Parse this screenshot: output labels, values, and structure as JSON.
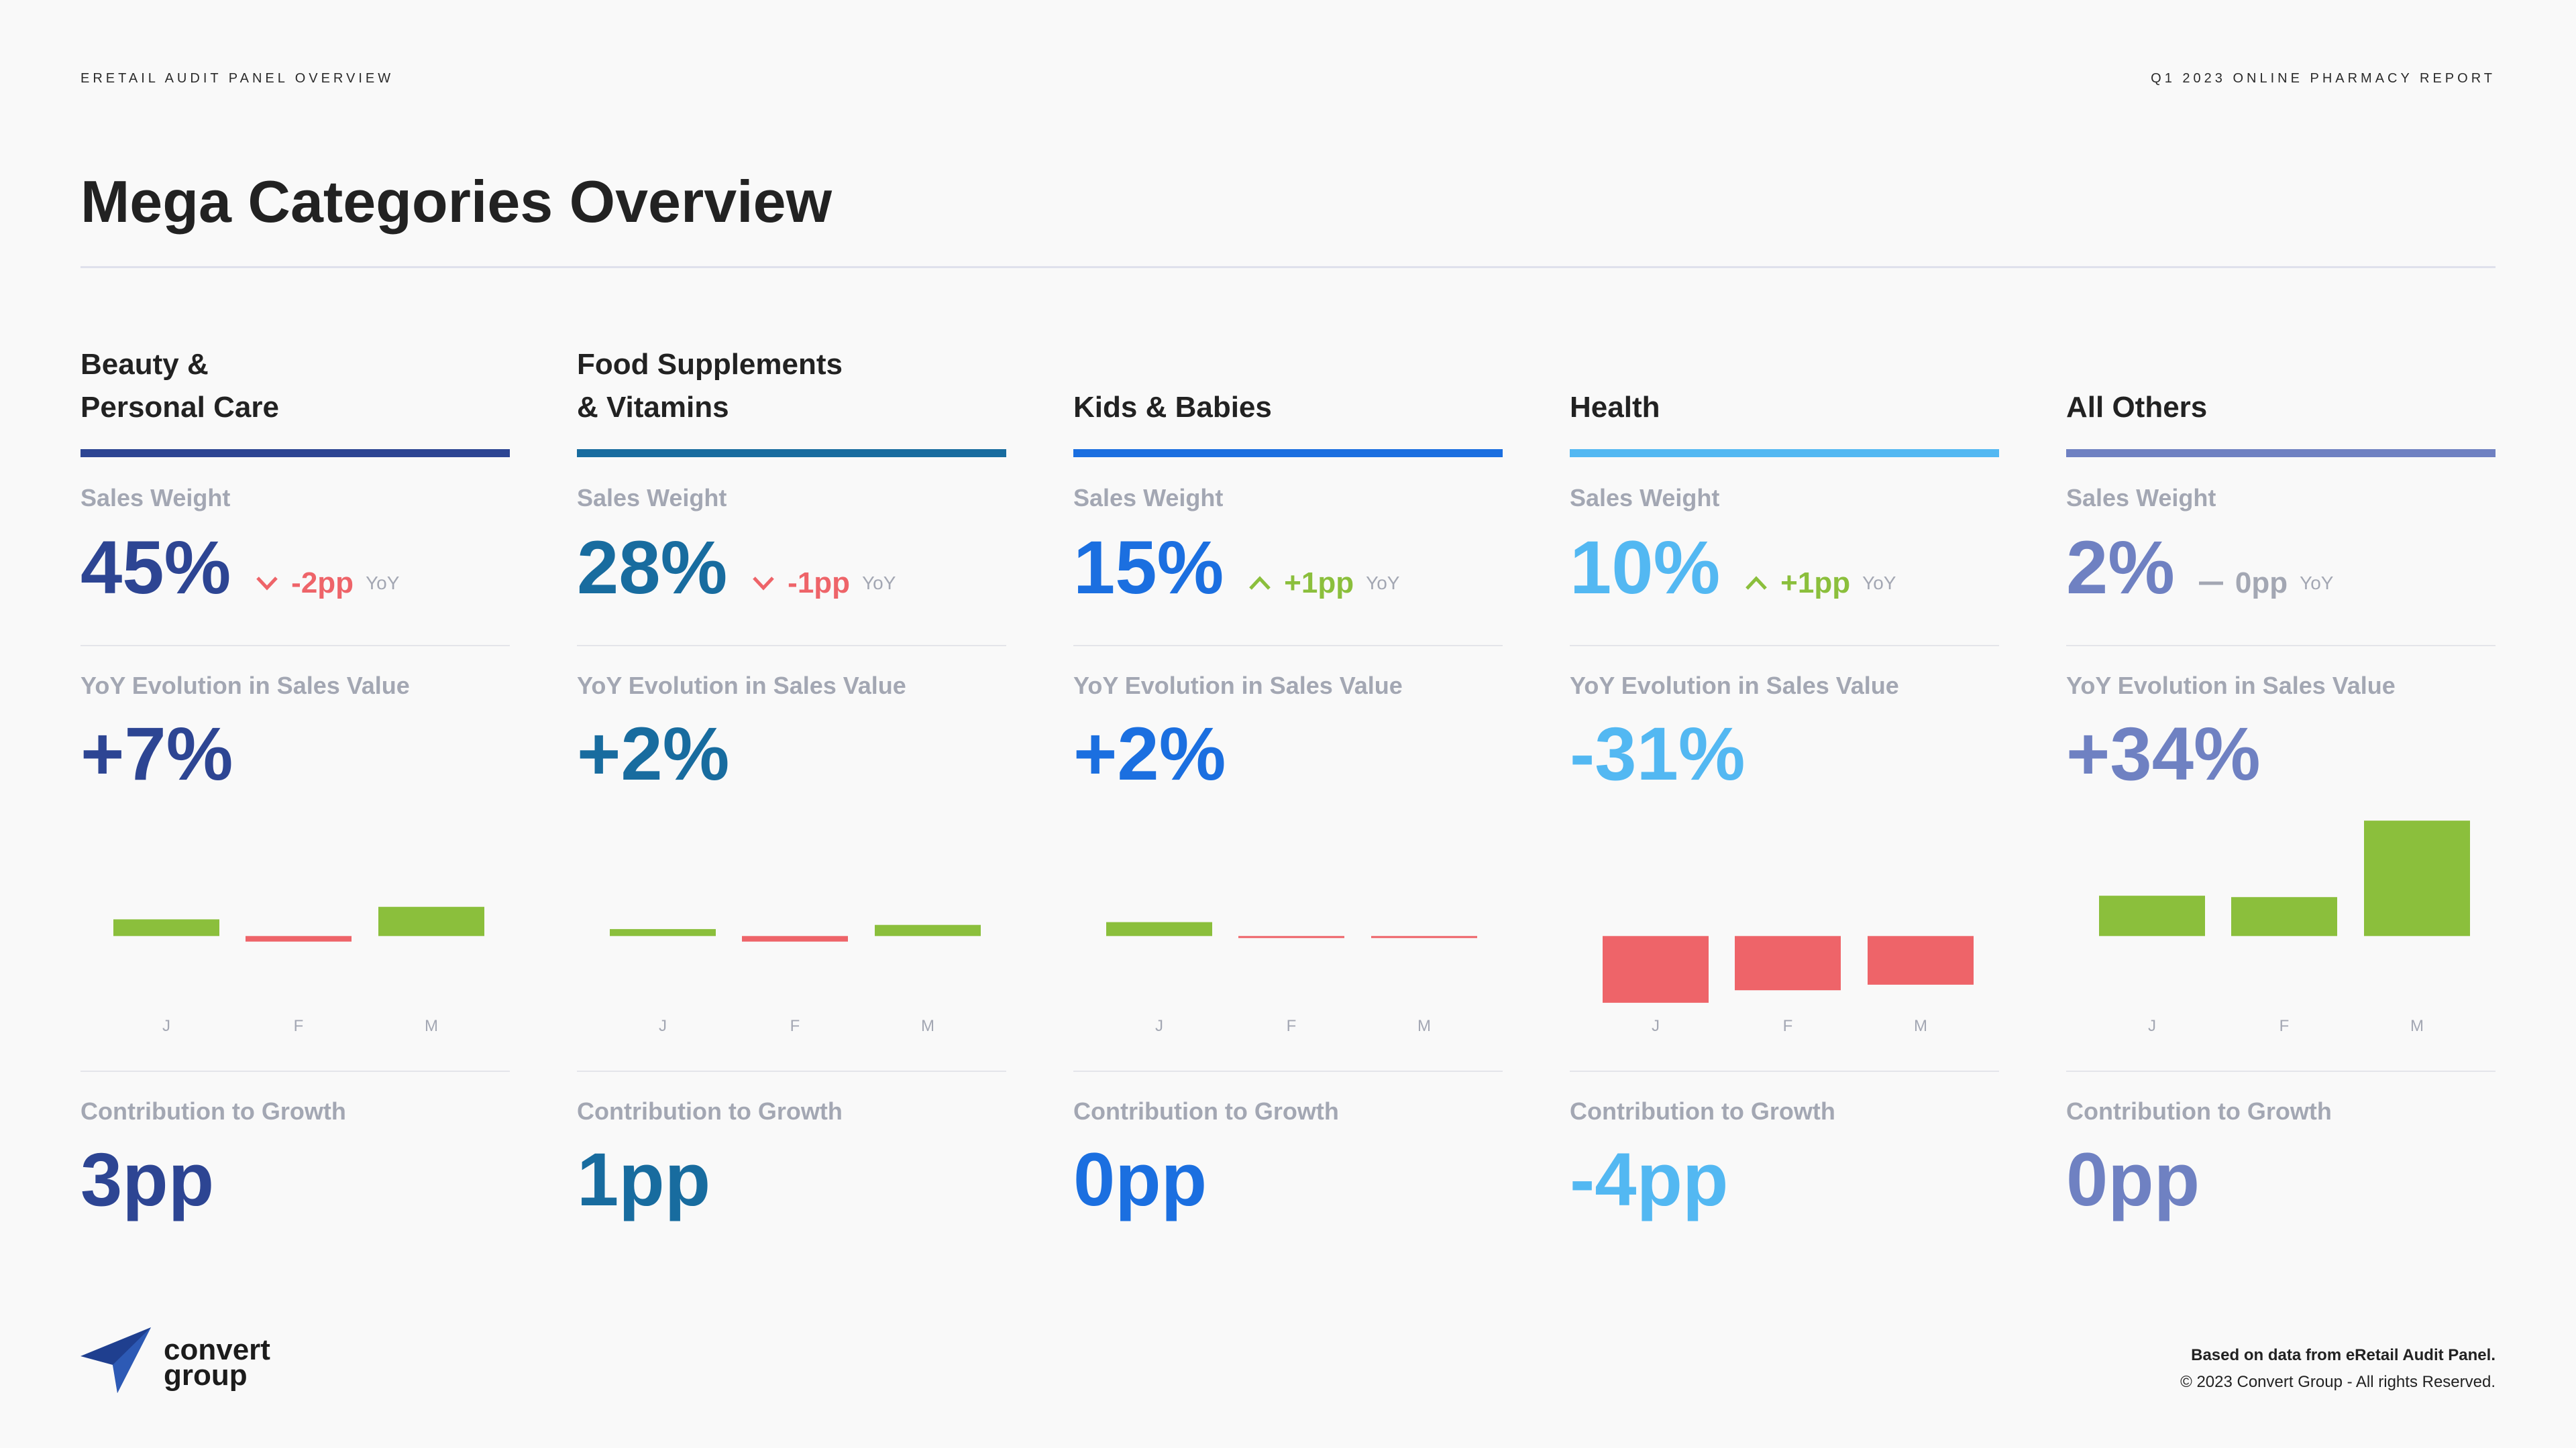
{
  "header": {
    "left": "ERETAIL AUDIT PANEL OVERVIEW",
    "right": "Q1 2023 ONLINE PHARMACY REPORT",
    "title": "Mega Categories Overview"
  },
  "labels": {
    "sales_weight": "Sales Weight",
    "yoy_evolution": "YoY Evolution in Sales Value",
    "contribution": "Contribution to Growth",
    "yoy": "YoY"
  },
  "colors": {
    "positive": "#8bbf3c",
    "negative": "#ee6469",
    "neutral": "#a3a7b3"
  },
  "categories": [
    {
      "name": "Beauty &\nPersonal Care",
      "color": "#2d4593",
      "sales_weight": "45%",
      "weight_delta": "-2pp",
      "delta_dir": "down",
      "yoy_evolution": "+7%",
      "contribution": "3pp"
    },
    {
      "name": "Food Supplements\n& Vitamins",
      "color": "#186c9f",
      "sales_weight": "28%",
      "weight_delta": "-1pp",
      "delta_dir": "down",
      "yoy_evolution": "+2%",
      "contribution": "1pp"
    },
    {
      "name": "Kids & Babies",
      "color": "#1b6fe0",
      "sales_weight": "15%",
      "weight_delta": "+1pp",
      "delta_dir": "up",
      "yoy_evolution": "+2%",
      "contribution": "0pp"
    },
    {
      "name": "Health",
      "color": "#53b8f2",
      "sales_weight": "10%",
      "weight_delta": "+1pp",
      "delta_dir": "up",
      "yoy_evolution": "-31%",
      "contribution": "-4pp"
    },
    {
      "name": "All Others",
      "color": "#6f81c2",
      "sales_weight": "2%",
      "weight_delta": "0pp",
      "delta_dir": "flat",
      "yoy_evolution": "+34%",
      "contribution": "0pp"
    }
  ],
  "chart_data": {
    "type": "bar",
    "categories": [
      "J",
      "F",
      "M"
    ],
    "ylim": [
      -50,
      85
    ],
    "grid": false,
    "series": [
      {
        "values": [
          12,
          -4,
          21
        ]
      },
      {
        "values": [
          5,
          -4,
          8
        ]
      },
      {
        "values": [
          10,
          -1,
          -0.5
        ]
      },
      {
        "values": [
          -48,
          -39,
          -35
        ]
      },
      {
        "values": [
          29,
          28,
          83
        ]
      }
    ]
  },
  "footer": {
    "logo": "convert\ngroup",
    "source": "Based on data from eRetail Audit Panel.",
    "copyright": "© 2023 Convert Group - All rights Reserved."
  }
}
